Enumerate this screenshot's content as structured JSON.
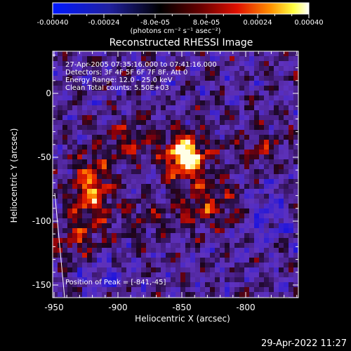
{
  "colorbar": {
    "ticks": [
      "-0.00040",
      "-0.00024",
      "-8.0e-05",
      "8.0e-05",
      "0.00024",
      "0.00040"
    ],
    "units": "(photons cm⁻² s⁻¹ asec⁻²)"
  },
  "title": "Reconstructed RHESSI Image",
  "info": {
    "time_range": "27-Apr-2005 07:35:16.000 to 07:41:16.000",
    "detectors": "Detectors: 3F 4F 5F 6F 7F 8F, Att 0",
    "energy_range": "Energy Range: 12.0 - 25.0 keV",
    "clean": "Clean     Total counts: 5.50E+03"
  },
  "peak_label": "Position of Peak = [-841,-45]",
  "axes": {
    "x_ticks": [
      "-950",
      "-900",
      "-850",
      "-800"
    ],
    "y_ticks": [
      "0",
      "-50",
      "-100",
      "-150"
    ],
    "xlabel": "Heliocentric X (arcsec)",
    "ylabel": "Heliocentric Y (arcsec)"
  },
  "timestamp": "29-Apr-2022 11:27",
  "colors": {
    "background": "#000000",
    "colormap": [
      "#0000ff",
      "#000000",
      "#ff0000",
      "#ffff00",
      "#ffffff"
    ]
  }
}
